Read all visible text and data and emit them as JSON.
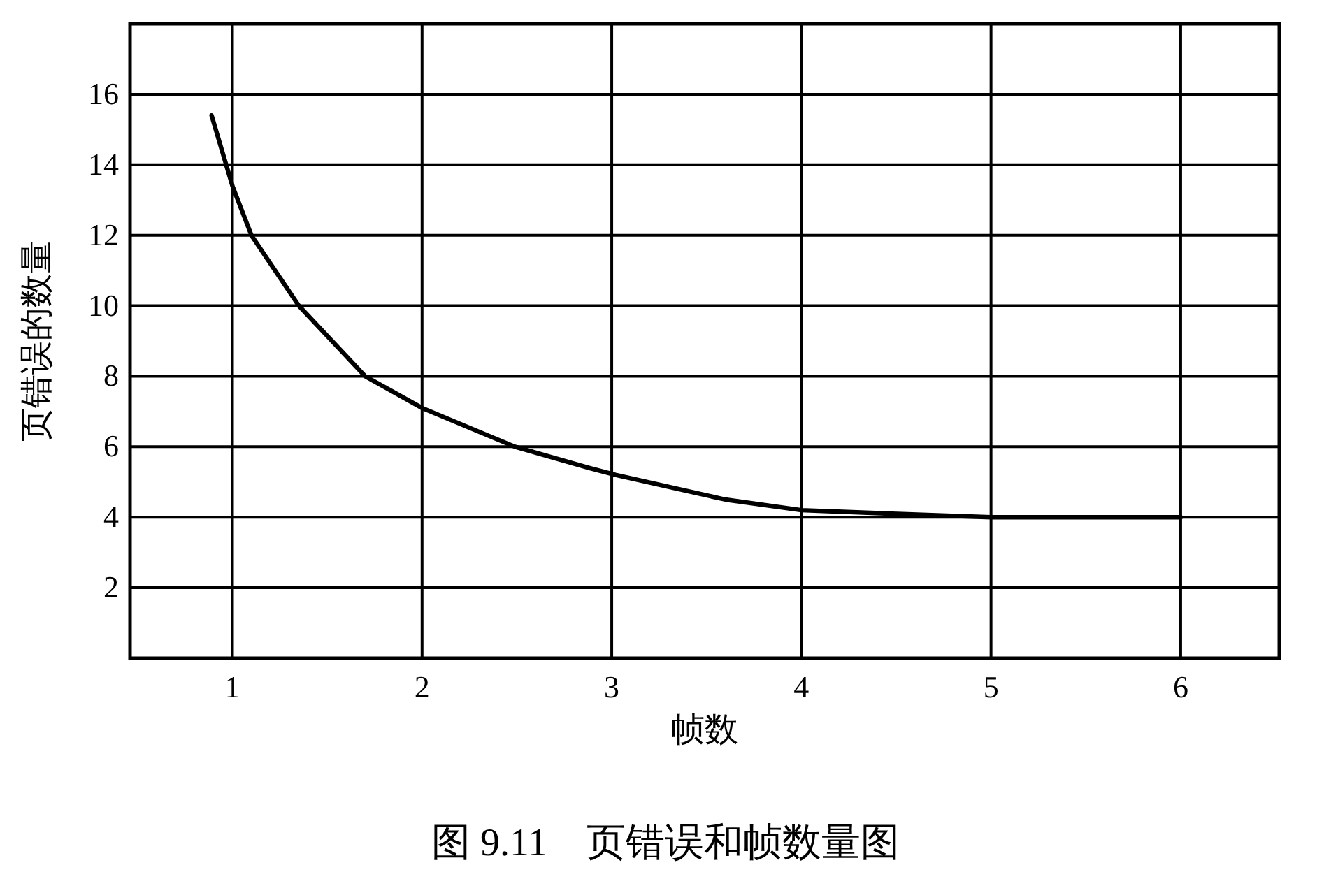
{
  "chart_data": {
    "type": "line",
    "title": "图 9.11    页错误和帧数量图",
    "xlabel": "帧数",
    "ylabel": "页错误的数量",
    "x": [
      0.89,
      1.0,
      1.1,
      1.35,
      1.7,
      2.0,
      2.49,
      2.88,
      3.02,
      3.6,
      4.0,
      4.48,
      5.0,
      6.0
    ],
    "series": [
      {
        "color": "#000000",
        "values": [
          15.4,
          13.4,
          12,
          10,
          8,
          7.1,
          6,
          5.4,
          5.2,
          4.5,
          4.2,
          4.1,
          4.0,
          4.0
        ]
      }
    ],
    "xlim": [
      0.46,
      6.52
    ],
    "ylim": [
      0,
      18
    ],
    "xticks": [
      1,
      2,
      3,
      4,
      5,
      6
    ],
    "yticks": [
      2,
      4,
      6,
      8,
      10,
      12,
      14,
      16
    ],
    "grid": true,
    "marker": "none",
    "line_style": "solid"
  }
}
